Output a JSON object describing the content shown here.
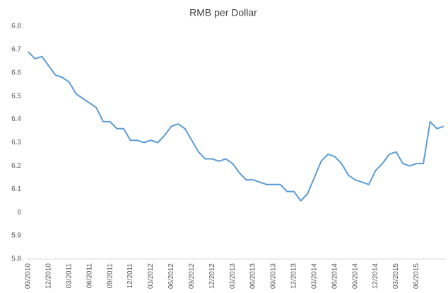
{
  "chart_data": {
    "type": "line",
    "title": "RMB per Dollar",
    "categories": [
      "09/2010",
      null,
      null,
      "12/2010",
      null,
      null,
      "03/2011",
      null,
      null,
      "06/2011",
      null,
      null,
      "09/2011",
      null,
      null,
      "12/2011",
      null,
      null,
      "03/2012",
      null,
      null,
      "06/2012",
      null,
      null,
      "09/2012",
      null,
      null,
      "12/2012",
      null,
      null,
      "03/2013",
      null,
      null,
      "06/2013",
      null,
      null,
      "09/2013",
      null,
      null,
      "12/2013",
      null,
      null,
      "03/2014",
      null,
      null,
      "06/2014",
      null,
      null,
      "09/2014",
      null,
      null,
      "12/2014",
      null,
      null,
      "03/2015",
      null,
      null,
      "06/2015",
      null,
      null,
      null,
      null
    ],
    "values": [
      6.69,
      6.66,
      6.67,
      6.63,
      6.59,
      6.58,
      6.56,
      6.51,
      6.49,
      6.47,
      6.45,
      6.39,
      6.39,
      6.36,
      6.36,
      6.31,
      6.31,
      6.3,
      6.31,
      6.3,
      6.33,
      6.37,
      6.38,
      6.36,
      6.31,
      6.26,
      6.23,
      6.23,
      6.22,
      6.23,
      6.21,
      6.17,
      6.14,
      6.14,
      6.13,
      6.12,
      6.12,
      6.12,
      6.09,
      6.09,
      6.05,
      6.08,
      6.15,
      6.22,
      6.25,
      6.24,
      6.21,
      6.16,
      6.14,
      6.13,
      6.12,
      6.18,
      6.21,
      6.25,
      6.26,
      6.21,
      6.2,
      6.21,
      6.21,
      6.39,
      6.36,
      6.37
    ],
    "color": "#5b9bd5",
    "ylim": [
      5.8,
      6.8
    ],
    "yticks": [
      5.8,
      5.9,
      6,
      6.1,
      6.2,
      6.3,
      6.4,
      6.5,
      6.6,
      6.7,
      6.8
    ],
    "grid": false
  }
}
